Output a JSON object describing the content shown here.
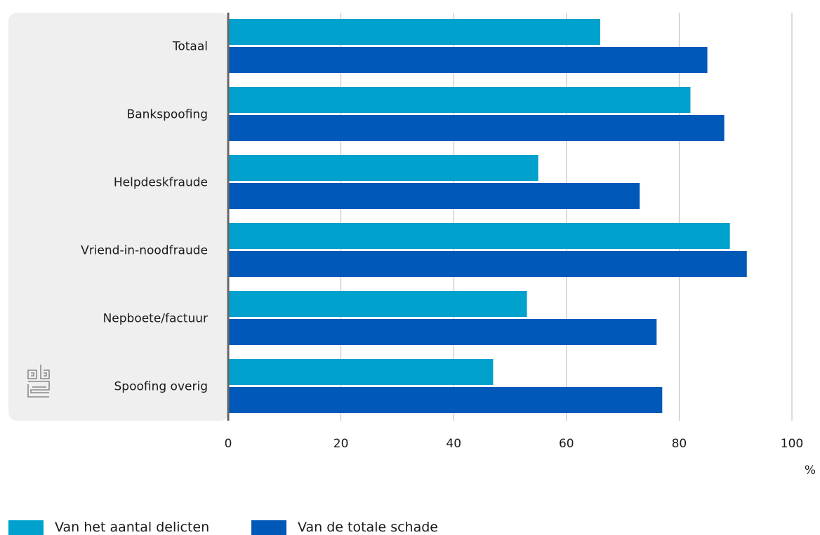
{
  "colors": {
    "series1": "#00a1cd",
    "series2": "#0058b8",
    "panel": "#efefef",
    "grid": "#b9b9b9",
    "axis": "#666666",
    "logo": "#8a8a8a"
  },
  "logo": {
    "icon": "cbs-logo-icon"
  },
  "chart_data": {
    "type": "bar",
    "orientation": "horizontal",
    "categories": [
      "Totaal",
      "Bankspoofing",
      "Helpdeskfraude",
      "Vriend-in-noodfraude",
      "Nepboete/factuur",
      "Spoofing overig"
    ],
    "series": [
      {
        "name": "Van het aantal delicten",
        "values": [
          66,
          82,
          55,
          89,
          53,
          47
        ]
      },
      {
        "name": "Van de totale schade",
        "values": [
          85,
          88,
          73,
          92,
          76,
          77
        ]
      }
    ],
    "xlim": [
      0,
      100
    ],
    "xticks": [
      "0",
      "20",
      "40",
      "60",
      "80",
      "100"
    ],
    "xticks_values": [
      0,
      20,
      40,
      60,
      80,
      100
    ],
    "unit": "%",
    "grid": true,
    "legend_position": "bottom-left"
  }
}
